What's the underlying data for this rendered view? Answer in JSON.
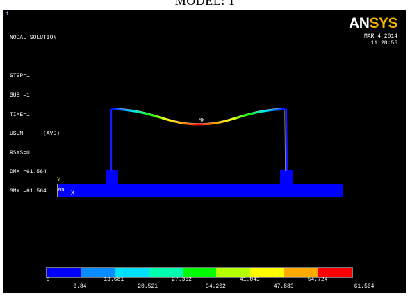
{
  "page_title": "MODEL: 1",
  "window_number": "1",
  "logo": {
    "part_a": "AN",
    "part_b": "SYS"
  },
  "datetime": {
    "date": "MAR  4 2014",
    "time": "11:28:55"
  },
  "info": {
    "line1": "NODAL SOLUTION",
    "line2": "STEP=1",
    "line3": "SUB =1",
    "line4": "TIME=1",
    "line5": "USUM      (AVG)",
    "line6": "RSYS=0",
    "line7": "DMX =61.564",
    "line8": "SMX =61.564"
  },
  "labels": {
    "mx": "MX",
    "mn": "MN",
    "axis_y": "Y",
    "axis_x": "X"
  },
  "legend": {
    "colors": [
      "#0000ff",
      "#0a8cff",
      "#00e1ff",
      "#00ffae",
      "#00ff00",
      "#b4ff00",
      "#ffff00",
      "#ffaa00",
      "#ff0000"
    ],
    "labels_top": [
      "0",
      "13.681",
      "27.362",
      "41.043",
      "54.724"
    ],
    "labels_bottom": [
      "6.84",
      "20.521",
      "34.202",
      "47.883",
      "61.564"
    ]
  }
}
